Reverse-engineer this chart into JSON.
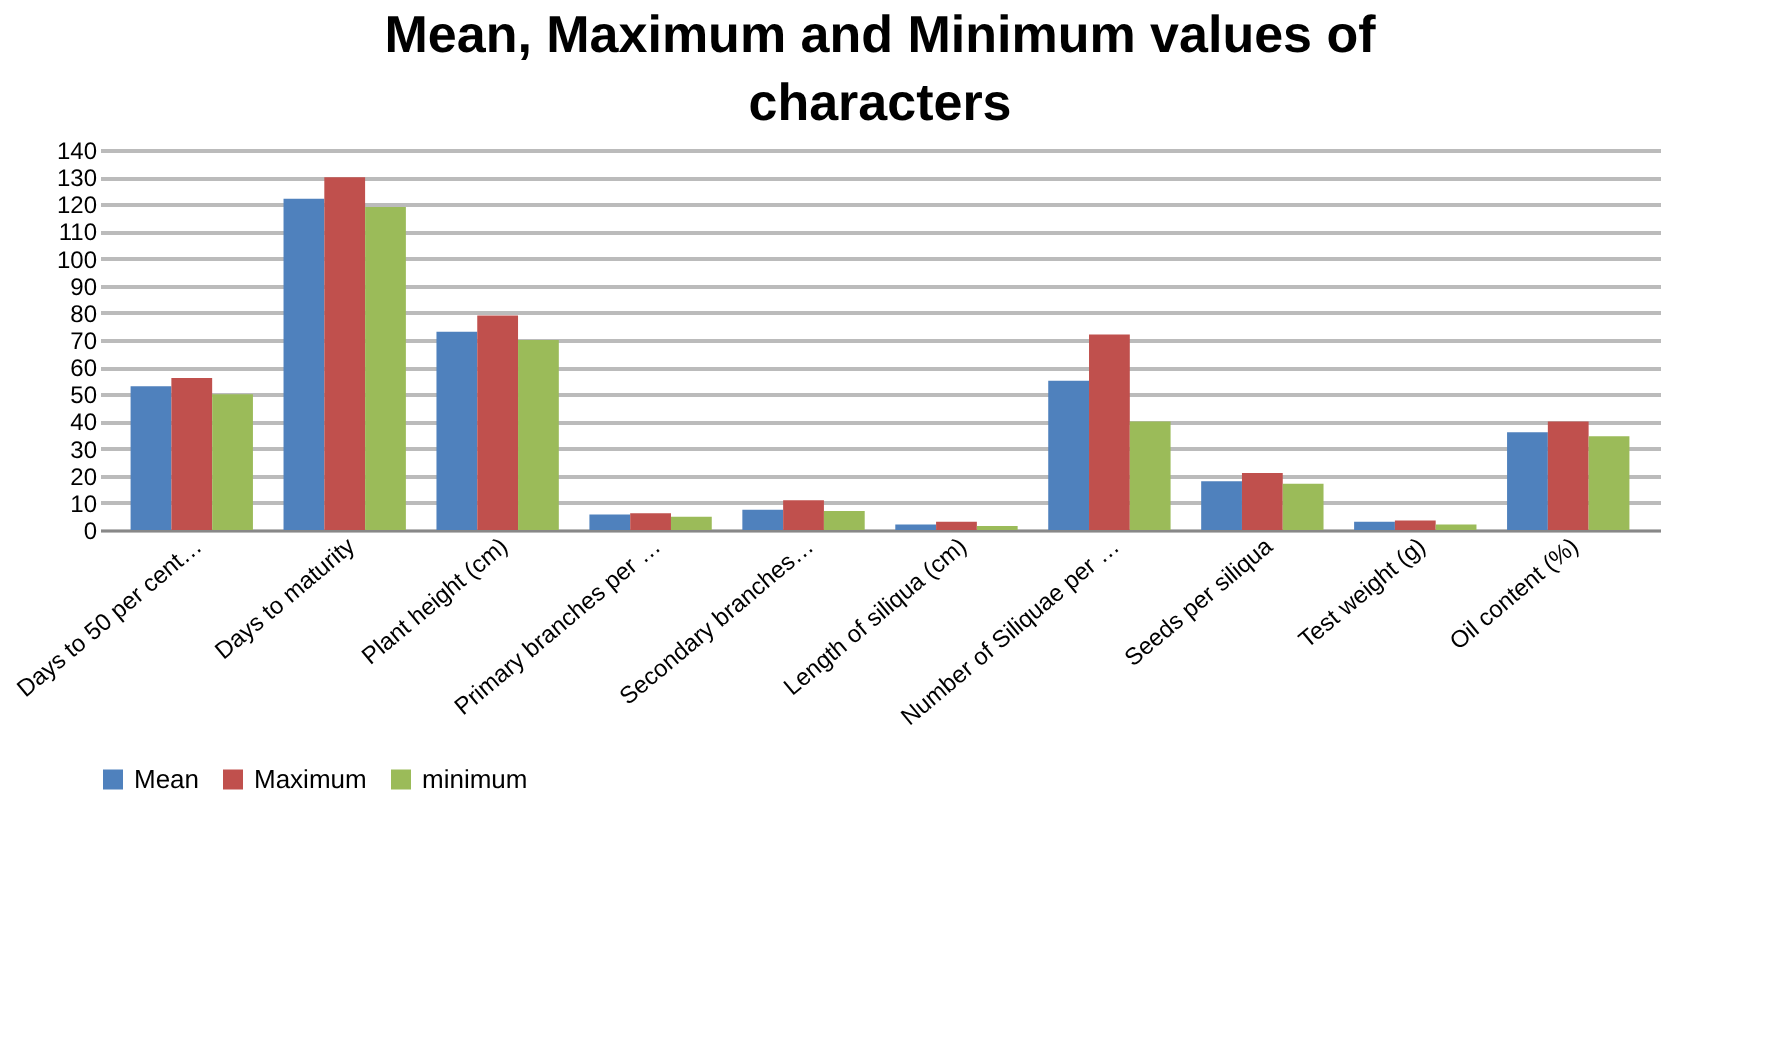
{
  "chart_data": {
    "type": "bar",
    "title": "Mean, Maximum and Minimum values of characters",
    "categories": [
      "Days to 50 per cent…",
      "Days to maturity",
      "Plant height (cm)",
      "Primary branches per …",
      "Secondary branches…",
      "Length of siliqua (cm)",
      "Number of Siliquae per …",
      "Seeds per siliqua",
      "Test weight (g)",
      "Oil content (%)"
    ],
    "series": [
      {
        "name": "Mean",
        "color": "#4f81bd",
        "values": [
          53,
          122,
          73,
          5.7,
          7.5,
          2,
          55,
          18,
          3,
          36
        ]
      },
      {
        "name": "Maximum",
        "color": "#c0504d",
        "values": [
          56,
          130,
          79,
          6.2,
          11,
          3,
          72,
          21,
          3.5,
          40
        ]
      },
      {
        "name": "minimum",
        "color": "#9bbb59",
        "values": [
          50,
          119,
          70,
          4.9,
          7,
          1.5,
          40,
          17,
          2,
          34.5
        ]
      }
    ],
    "ylim": [
      0,
      140
    ],
    "yticks": [
      0,
      10,
      20,
      30,
      40,
      50,
      60,
      70,
      80,
      90,
      100,
      110,
      120,
      130,
      140
    ],
    "grid": "y",
    "legend": "bottom"
  }
}
